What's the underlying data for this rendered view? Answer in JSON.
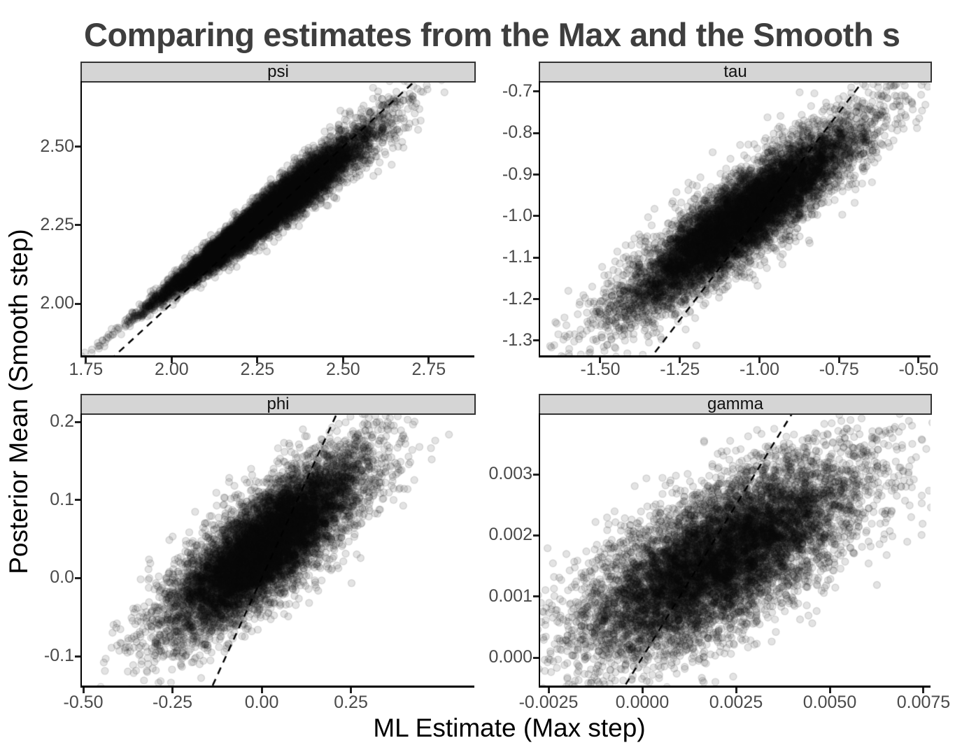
{
  "title": "Comparing estimates from the Max and the Smooth s",
  "axis_titles": {
    "x": "ML Estimate (Max step)",
    "y": "Posterior Mean (Smooth step)"
  },
  "colors": {
    "title_text": "#3e3e3e",
    "axis_title_text": "#000000",
    "tick_label_text": "#4a4a4a",
    "strip_background": "#d5d5d5",
    "strip_border": "#333333",
    "axis_line": "#000000",
    "point_fill": "rgba(0,0,0,0.11)",
    "point_stroke": "rgba(0,0,0,0.13)",
    "abline": "#000000",
    "background": "#ffffff"
  },
  "chart_data": [
    {
      "type": "scatter",
      "label": "psi",
      "row": 0,
      "col": 0,
      "xlim": [
        1.738,
        2.883
      ],
      "ylim": [
        1.835,
        2.705
      ],
      "x_tick_values": [
        1.75,
        2.0,
        2.25,
        2.5,
        2.75
      ],
      "x_tick_labels": [
        "1.75",
        "2.00",
        "2.25",
        "2.50",
        "2.75"
      ],
      "y_tick_values": [
        2.0,
        2.25,
        2.5
      ],
      "y_tick_labels": [
        "2.00",
        "2.25",
        "2.50"
      ],
      "abline": {
        "slope": 1,
        "intercept": 0,
        "linetype": "dashed"
      },
      "points": {
        "n": 9000,
        "seed": 42,
        "x_mean": 2.27,
        "x_sd": 0.155,
        "slope": 0.85,
        "intercept": 0.35,
        "noise_base": 0.006,
        "noise_growth": 0.055,
        "x_ref": 1.8
      }
    },
    {
      "type": "scatter",
      "label": "tau",
      "row": 0,
      "col": 1,
      "xlim": [
        -1.689,
        -0.4626
      ],
      "ylim": [
        -1.3354,
        -0.6781
      ],
      "x_tick_values": [
        -1.5,
        -1.25,
        -1.0,
        -0.75,
        -0.5
      ],
      "x_tick_labels": [
        "-1.50",
        "-1.25",
        "-1.00",
        "-0.75",
        "-0.50"
      ],
      "y_tick_values": [
        -1.3,
        -1.2,
        -1.1,
        -1.0,
        -0.9,
        -0.8,
        -0.7
      ],
      "y_tick_labels": [
        "-1.3",
        "-1.2",
        "-1.1",
        "-1.0",
        "-0.9",
        "-0.8",
        "-0.7"
      ],
      "abline": {
        "slope": 1,
        "intercept": 0,
        "linetype": "dashed"
      },
      "points": {
        "n": 9000,
        "seed": 7,
        "x_mean": -1.05,
        "x_sd": 0.185,
        "slope": 0.55,
        "intercept": -0.4225,
        "noise_base": 0.05,
        "noise_growth": 0,
        "x_ref": -1.7
      }
    },
    {
      "type": "scatter",
      "label": "phi",
      "row": 1,
      "col": 0,
      "xlim": [
        -0.504,
        0.596
      ],
      "ylim": [
        -0.1376,
        0.209
      ],
      "x_tick_values": [
        -0.5,
        -0.25,
        0.0,
        0.25
      ],
      "x_tick_labels": [
        "-0.50",
        "-0.25",
        "0.00",
        "0.25"
      ],
      "y_tick_values": [
        -0.1,
        0.0,
        0.1,
        0.2
      ],
      "y_tick_labels": [
        "-0.1",
        "0.0",
        "0.1",
        "0.2"
      ],
      "abline": {
        "slope": 1,
        "intercept": 0,
        "linetype": "dashed"
      },
      "points": {
        "n": 9000,
        "seed": 13,
        "x_mean": 0.01,
        "x_sd": 0.14,
        "slope": 0.33,
        "intercept": 0.038,
        "noise_base": 0.034,
        "noise_growth": 0,
        "x_ref": -0.5
      }
    },
    {
      "type": "scatter",
      "label": "gamma",
      "row": 1,
      "col": 1,
      "xlim": [
        -0.002724,
        0.0076866
      ],
      "ylim": [
        -0.000458,
        0.0039737
      ],
      "x_tick_values": [
        -0.0025,
        0.0,
        0.0025,
        0.005,
        0.0075
      ],
      "x_tick_labels": [
        "-0.0025",
        "0.0000",
        "0.0025",
        "0.0050",
        "0.0075"
      ],
      "y_tick_values": [
        0.0,
        0.001,
        0.002,
        0.003
      ],
      "y_tick_labels": [
        "0.000",
        "0.001",
        "0.002",
        "0.003"
      ],
      "abline": {
        "slope": 1,
        "intercept": 0,
        "linetype": "dashed"
      },
      "points": {
        "n": 9000,
        "seed": 99,
        "x_mean": 0.00205,
        "x_sd": 0.00185,
        "slope": 0.3,
        "intercept": 0.001,
        "noise_base": 0.00058,
        "noise_growth": 0,
        "x_ref": -0.003
      }
    }
  ]
}
